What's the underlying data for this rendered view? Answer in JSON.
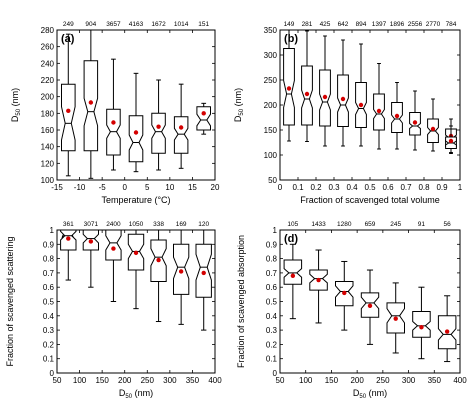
{
  "chart_data": [
    {
      "type": "boxplot",
      "panel_label": "(a)",
      "xlabel": "Temperature (°C)",
      "ylabel_main": "D",
      "ylabel_sub": "50",
      "ylabel_tail": " (nm)",
      "xlim": [
        -15,
        20
      ],
      "ylim": [
        100,
        280
      ],
      "xticks": [
        -15,
        -10,
        -5,
        0,
        5,
        10,
        15,
        20
      ],
      "yticks": [
        100,
        120,
        140,
        160,
        180,
        200,
        220,
        240,
        260,
        280
      ],
      "box_width": 3,
      "boxes": [
        {
          "x": -12.5,
          "count": "249",
          "whislo": 105,
          "q1": 135,
          "notchlo": 148,
          "med": 168,
          "notchhi": 188,
          "q3": 215,
          "whishi": 275,
          "mean": 183
        },
        {
          "x": -7.5,
          "count": "904",
          "whislo": 102,
          "q1": 135,
          "notchlo": 165,
          "med": 182,
          "notchhi": 198,
          "q3": 243,
          "whishi": 280,
          "mean": 193
        },
        {
          "x": -2.5,
          "count": "3657",
          "whislo": 112,
          "q1": 130,
          "notchlo": 150,
          "med": 158,
          "notchhi": 166,
          "q3": 185,
          "whishi": 245,
          "mean": 169
        },
        {
          "x": 2.5,
          "count": "4163",
          "whislo": 110,
          "q1": 122,
          "notchlo": 136,
          "med": 145,
          "notchhi": 154,
          "q3": 177,
          "whishi": 228,
          "mean": 157
        },
        {
          "x": 7.5,
          "count": "1672",
          "whislo": 112,
          "q1": 132,
          "notchlo": 150,
          "med": 158,
          "notchhi": 166,
          "q3": 180,
          "whishi": 220,
          "mean": 164
        },
        {
          "x": 12.5,
          "count": "1014",
          "whislo": 114,
          "q1": 132,
          "notchlo": 148,
          "med": 155,
          "notchhi": 162,
          "q3": 176,
          "whishi": 215,
          "mean": 163
        },
        {
          "x": 17.5,
          "count": "151",
          "whislo": 155,
          "q1": 160,
          "notchlo": 165,
          "med": 172,
          "notchhi": 179,
          "q3": 188,
          "whishi": 192,
          "mean": 180
        }
      ]
    },
    {
      "type": "boxplot",
      "panel_label": "(b)",
      "xlabel": "Fraction of scavenged total volume",
      "ylabel_main": "D",
      "ylabel_sub": "50",
      "ylabel_tail": " (nm)",
      "xlim": [
        0,
        1
      ],
      "ylim": [
        50,
        350
      ],
      "xticks": [
        0,
        0.1,
        0.2,
        0.3,
        0.4,
        0.5,
        0.6,
        0.7,
        0.8,
        0.9,
        1
      ],
      "yticks": [
        50,
        100,
        150,
        200,
        250,
        300,
        350
      ],
      "box_width": 0.06,
      "boxes": [
        {
          "x": 0.05,
          "count": "149",
          "whislo": 128,
          "q1": 160,
          "notchlo": 195,
          "med": 222,
          "notchhi": 249,
          "q3": 313,
          "whishi": 350,
          "mean": 233
        },
        {
          "x": 0.15,
          "count": "281",
          "whislo": 127,
          "q1": 160,
          "notchlo": 194,
          "med": 212,
          "notchhi": 230,
          "q3": 278,
          "whishi": 348,
          "mean": 222
        },
        {
          "x": 0.25,
          "count": "425",
          "whislo": 118,
          "q1": 158,
          "notchlo": 190,
          "med": 206,
          "notchhi": 222,
          "q3": 270,
          "whishi": 338,
          "mean": 216
        },
        {
          "x": 0.35,
          "count": "642",
          "whislo": 118,
          "q1": 157,
          "notchlo": 186,
          "med": 200,
          "notchhi": 214,
          "q3": 260,
          "whishi": 330,
          "mean": 212
        },
        {
          "x": 0.45,
          "count": "894",
          "whislo": 118,
          "q1": 155,
          "notchlo": 181,
          "med": 193,
          "notchhi": 205,
          "q3": 245,
          "whishi": 322,
          "mean": 200
        },
        {
          "x": 0.55,
          "count": "1397",
          "whislo": 112,
          "q1": 150,
          "notchlo": 173,
          "med": 182,
          "notchhi": 191,
          "q3": 222,
          "whishi": 283,
          "mean": 188
        },
        {
          "x": 0.65,
          "count": "1896",
          "whislo": 112,
          "q1": 145,
          "notchlo": 164,
          "med": 172,
          "notchhi": 180,
          "q3": 205,
          "whishi": 245,
          "mean": 178
        },
        {
          "x": 0.75,
          "count": "2556",
          "whislo": 110,
          "q1": 140,
          "notchlo": 153,
          "med": 158,
          "notchhi": 163,
          "q3": 185,
          "whishi": 228,
          "mean": 165
        },
        {
          "x": 0.85,
          "count": "2770",
          "whislo": 108,
          "q1": 125,
          "notchlo": 141,
          "med": 148,
          "notchhi": 155,
          "q3": 172,
          "whishi": 212,
          "mean": 152
        },
        {
          "x": 0.95,
          "count": "784",
          "whislo": 105,
          "q1": 117,
          "notchlo": 130,
          "med": 135,
          "notchhi": 140,
          "q3": 152,
          "whishi": 172,
          "mean": 138
        },
        {
          "x": 0.95,
          "count": "",
          "whislo": 103,
          "q1": 113,
          "notchlo": 120,
          "med": 124,
          "notchhi": 128,
          "q3": 136,
          "whishi": 158,
          "mean": 128
        }
      ]
    },
    {
      "type": "boxplot",
      "panel_label": "(c)",
      "xlabel_main": "D",
      "xlabel_sub": "50",
      "xlabel_tail": " (nm)",
      "ylabel": "Fraction of scavenged scattering",
      "xlim": [
        50,
        400
      ],
      "ylim": [
        0,
        1
      ],
      "xticks": [
        50,
        100,
        150,
        200,
        250,
        300,
        350,
        400
      ],
      "yticks": [
        0,
        0.1,
        0.2,
        0.3,
        0.4,
        0.5,
        0.6,
        0.7,
        0.8,
        0.9,
        1
      ],
      "box_width": 34,
      "boxes": [
        {
          "x": 75,
          "count": "361",
          "whislo": 0.65,
          "q1": 0.86,
          "notchlo": 0.93,
          "med": 0.96,
          "notchhi": 0.99,
          "q3": 1.0,
          "whishi": 1.0,
          "mean": 0.94
        },
        {
          "x": 125,
          "count": "3071",
          "whislo": 0.6,
          "q1": 0.86,
          "notchlo": 0.91,
          "med": 0.94,
          "notchhi": 0.97,
          "q3": 1.0,
          "whishi": 1.0,
          "mean": 0.92
        },
        {
          "x": 175,
          "count": "2400",
          "whislo": 0.5,
          "q1": 0.79,
          "notchlo": 0.86,
          "med": 0.91,
          "notchhi": 0.96,
          "q3": 1.0,
          "whishi": 1.0,
          "mean": 0.87
        },
        {
          "x": 225,
          "count": "1050",
          "whislo": 0.45,
          "q1": 0.72,
          "notchlo": 0.8,
          "med": 0.85,
          "notchhi": 0.9,
          "q3": 0.97,
          "whishi": 1.0,
          "mean": 0.84
        },
        {
          "x": 275,
          "count": "338",
          "whislo": 0.36,
          "q1": 0.64,
          "notchlo": 0.75,
          "med": 0.81,
          "notchhi": 0.87,
          "q3": 0.93,
          "whishi": 1.0,
          "mean": 0.79
        },
        {
          "x": 325,
          "count": "169",
          "whislo": 0.34,
          "q1": 0.55,
          "notchlo": 0.66,
          "med": 0.74,
          "notchhi": 0.81,
          "q3": 0.9,
          "whishi": 1.0,
          "mean": 0.71
        },
        {
          "x": 375,
          "count": "120",
          "whislo": 0.3,
          "q1": 0.53,
          "notchlo": 0.65,
          "med": 0.74,
          "notchhi": 0.83,
          "q3": 0.9,
          "whishi": 1.0,
          "mean": 0.7
        }
      ]
    },
    {
      "type": "boxplot",
      "panel_label": "(d)",
      "xlabel_main": "D",
      "xlabel_sub": "50",
      "xlabel_tail": " (nm)",
      "ylabel": "Fraction of scavenged absorption",
      "xlim": [
        50,
        400
      ],
      "ylim": [
        0,
        1
      ],
      "xticks": [
        50,
        100,
        150,
        200,
        250,
        300,
        350,
        400
      ],
      "yticks": [
        0,
        0.1,
        0.2,
        0.3,
        0.4,
        0.5,
        0.6,
        0.7,
        0.8,
        0.9,
        1
      ],
      "box_width": 34,
      "boxes": [
        {
          "x": 75,
          "count": "105",
          "whislo": 0.38,
          "q1": 0.62,
          "notchlo": 0.67,
          "med": 0.7,
          "notchhi": 0.73,
          "q3": 0.79,
          "whishi": 0.9,
          "mean": 0.68
        },
        {
          "x": 125,
          "count": "1433",
          "whislo": 0.35,
          "q1": 0.58,
          "notchlo": 0.63,
          "med": 0.66,
          "notchhi": 0.69,
          "q3": 0.72,
          "whishi": 0.86,
          "mean": 0.65
        },
        {
          "x": 175,
          "count": "1280",
          "whislo": 0.3,
          "q1": 0.47,
          "notchlo": 0.53,
          "med": 0.57,
          "notchhi": 0.61,
          "q3": 0.64,
          "whishi": 0.78,
          "mean": 0.56
        },
        {
          "x": 225,
          "count": "659",
          "whislo": 0.2,
          "q1": 0.39,
          "notchlo": 0.45,
          "med": 0.49,
          "notchhi": 0.53,
          "q3": 0.56,
          "whishi": 0.72,
          "mean": 0.47
        },
        {
          "x": 275,
          "count": "245",
          "whislo": 0.14,
          "q1": 0.28,
          "notchlo": 0.35,
          "med": 0.4,
          "notchhi": 0.45,
          "q3": 0.49,
          "whishi": 0.63,
          "mean": 0.38
        },
        {
          "x": 325,
          "count": "91",
          "whislo": 0.1,
          "q1": 0.25,
          "notchlo": 0.3,
          "med": 0.33,
          "notchhi": 0.36,
          "q3": 0.43,
          "whishi": 0.6,
          "mean": 0.32
        },
        {
          "x": 375,
          "count": "56",
          "whislo": 0.08,
          "q1": 0.17,
          "notchlo": 0.23,
          "med": 0.27,
          "notchhi": 0.31,
          "q3": 0.4,
          "whishi": 0.54,
          "mean": 0.29
        }
      ]
    }
  ],
  "colors": {
    "axis": "#000000",
    "box": "#000000",
    "mean_marker": "#d40000",
    "background": "#ffffff"
  }
}
